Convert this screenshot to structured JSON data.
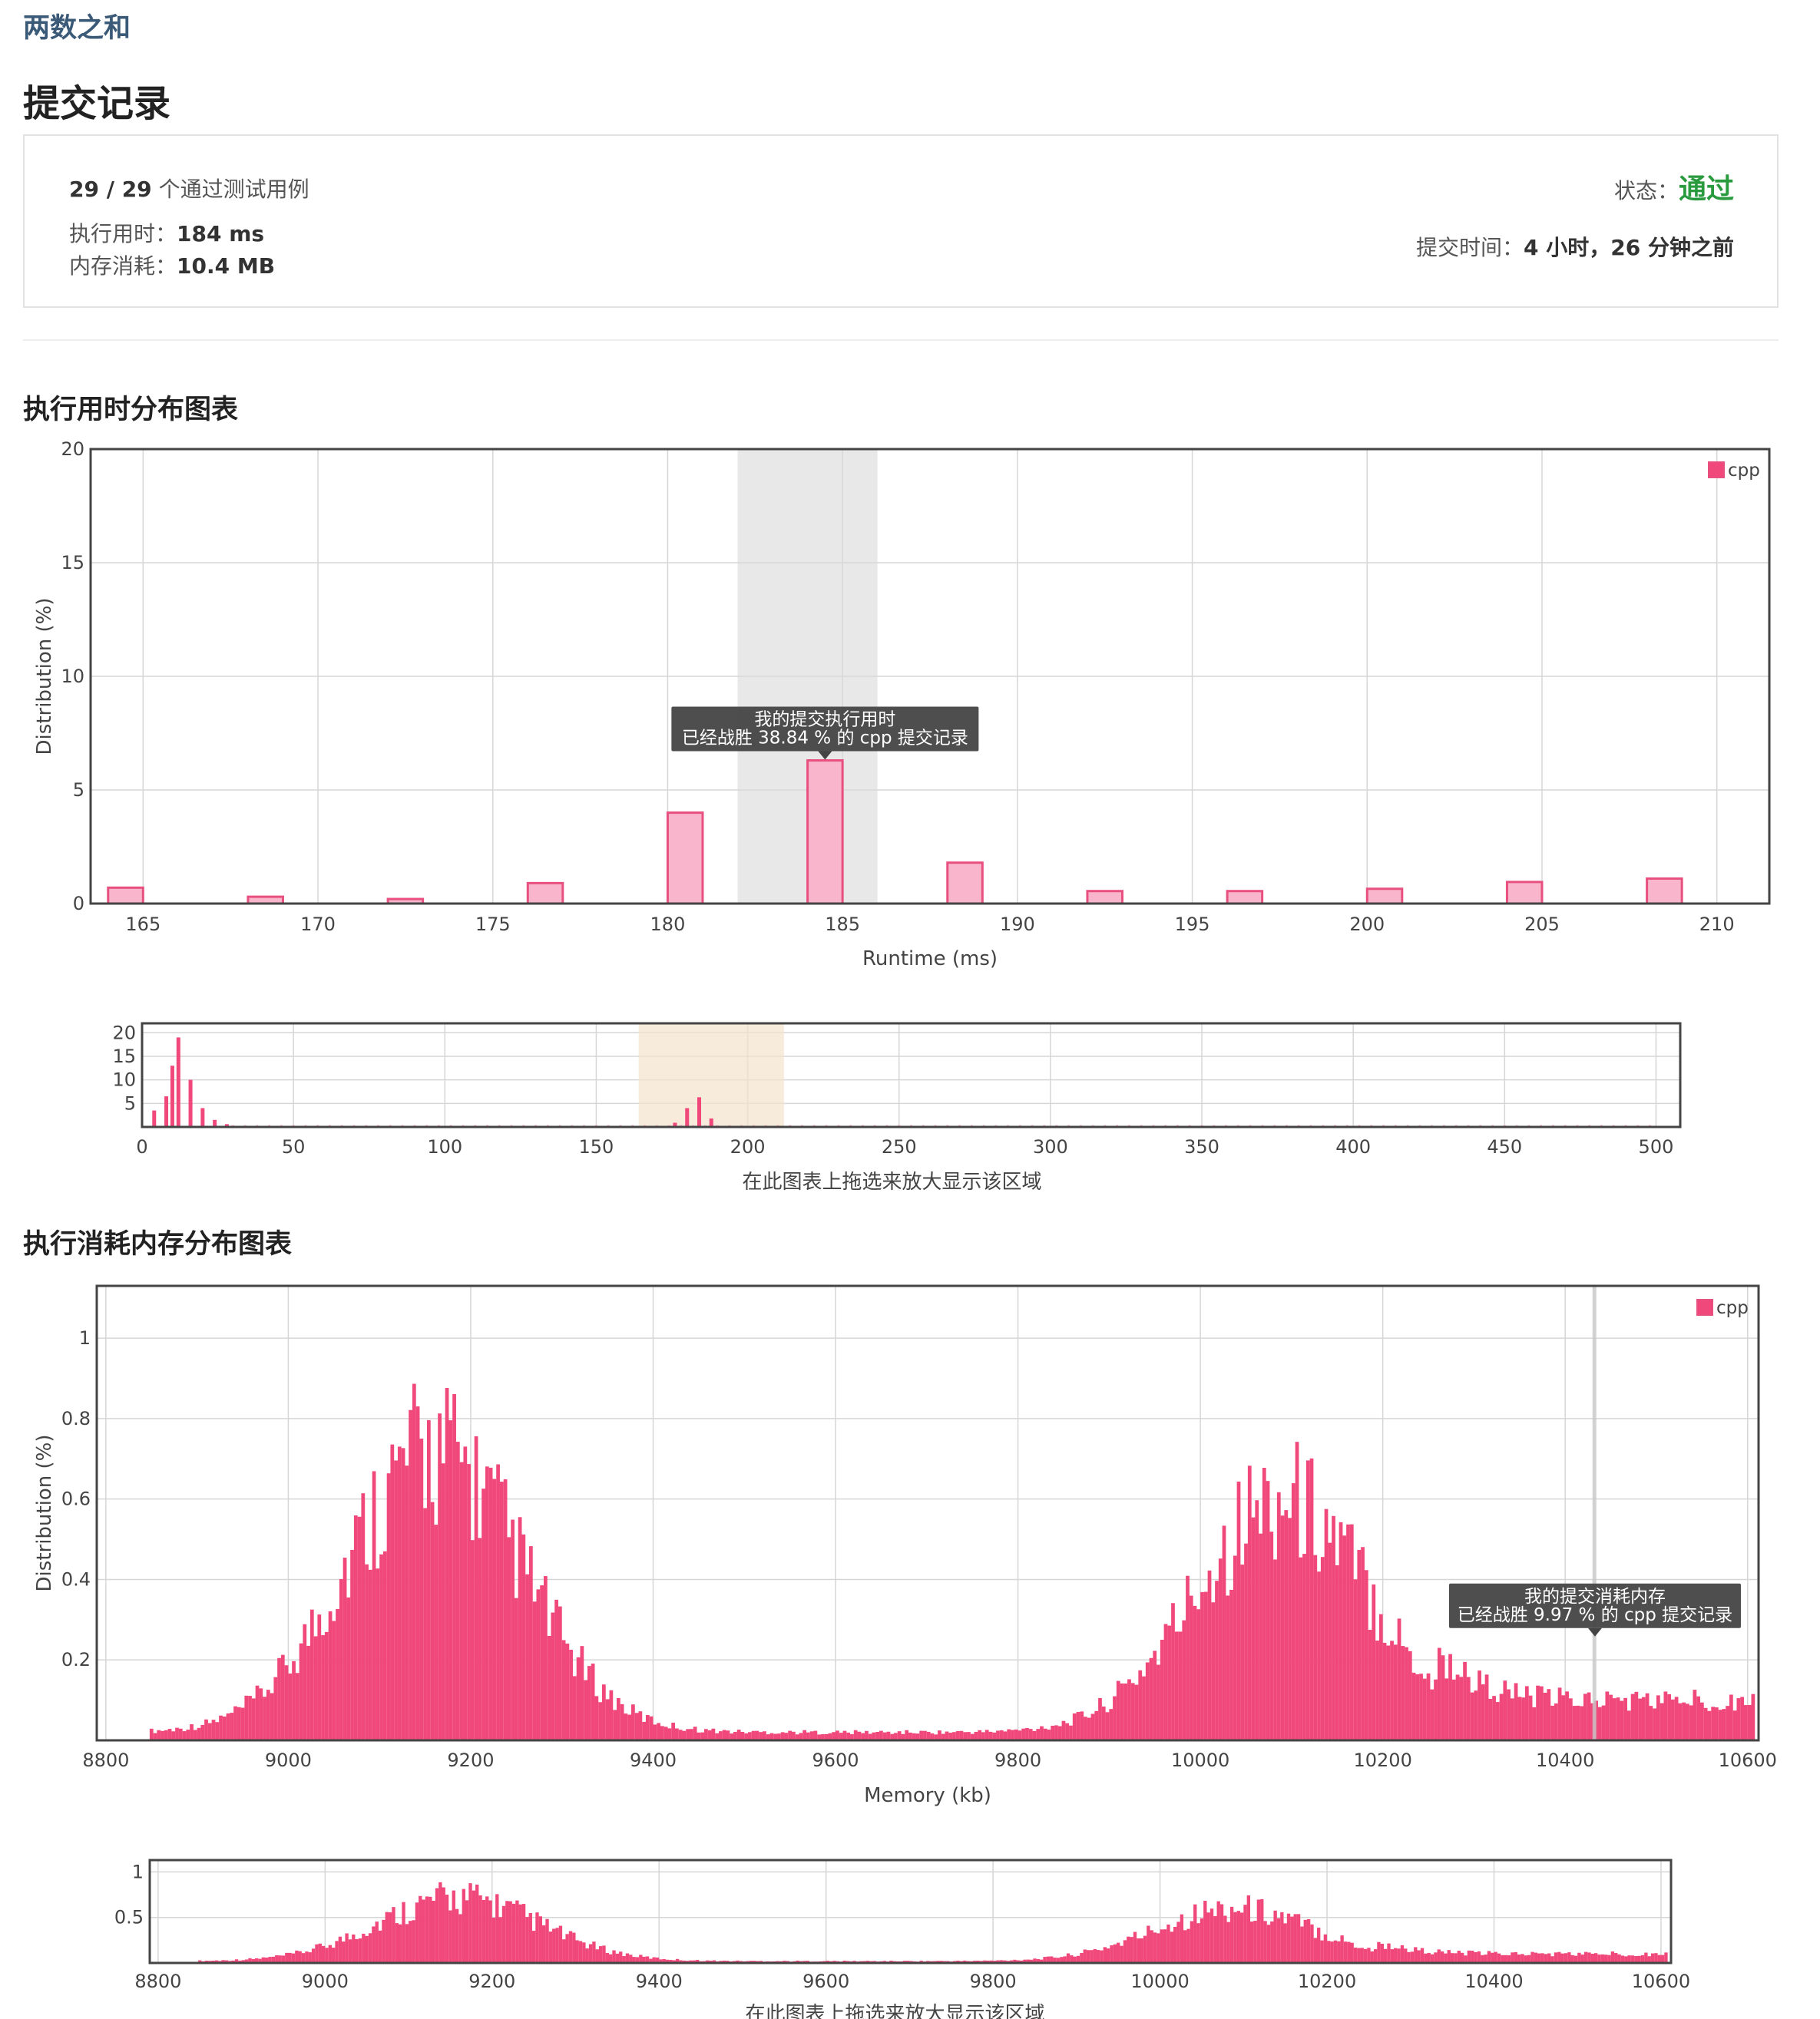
{
  "problem_title": "两数之和",
  "page_title": "提交记录",
  "summary": {
    "passed": "29 / 29",
    "passed_suffix": "个通过测试用例",
    "runtime_label": "执行用时：",
    "runtime_value": "184 ms",
    "memory_label": "内存消耗：",
    "memory_value": "10.4 MB",
    "status_label": "状态：",
    "status_value": "通过",
    "submit_time_label": "提交时间：",
    "submit_time_value": "4 小时，26 分钟之前"
  },
  "runtime_section_title": "执行用时分布图表",
  "memory_section_title": "执行消耗内存分布图表",
  "colors": {
    "bar_fill_light": "#f8b5cc",
    "bar_stroke": "#e8507f",
    "bar_fill_strong": "#f0487a",
    "pass": "#2a9a3e"
  },
  "chart_data": [
    {
      "type": "bar",
      "name": "runtime-main",
      "xlabel": "Runtime (ms)",
      "ylabel": "Distribution (%)",
      "xlim": [
        163.5,
        211.5
      ],
      "ylim": [
        0,
        20
      ],
      "xticks": [
        165,
        170,
        175,
        180,
        185,
        190,
        195,
        200,
        205,
        210
      ],
      "yticks": [
        0,
        5,
        10,
        15,
        20
      ],
      "legend": "cpp",
      "legend_position": "top-right",
      "grid": true,
      "highlight_range": [
        182,
        186
      ],
      "x": [
        164.5,
        168.5,
        172.5,
        176.5,
        180.5,
        184.5,
        188.5,
        192.5,
        196.5,
        200.5,
        204.5,
        208.5
      ],
      "values": [
        0.7,
        0.3,
        0.2,
        0.9,
        4.0,
        6.3,
        1.8,
        0.55,
        0.55,
        0.65,
        0.95,
        1.1
      ],
      "tooltip": {
        "x": 184.5,
        "line1": "我的提交执行用时",
        "line2": "已经战胜 38.84 % 的 cpp 提交记录"
      }
    },
    {
      "type": "bar",
      "name": "runtime-overview",
      "xlabel": "在此图表上拖选来放大显示该区域",
      "xlim": [
        0,
        508
      ],
      "ylim": [
        0,
        22
      ],
      "xticks": [
        0,
        50,
        100,
        150,
        200,
        250,
        300,
        350,
        400,
        450,
        500
      ],
      "yticks": [
        5,
        10,
        15,
        20
      ],
      "grid": true,
      "selection_range": [
        164,
        212
      ],
      "values": [
        {
          "x": 4,
          "y": 3.5
        },
        {
          "x": 8,
          "y": 6.5
        },
        {
          "x": 10,
          "y": 13
        },
        {
          "x": 12,
          "y": 19
        },
        {
          "x": 16,
          "y": 10
        },
        {
          "x": 20,
          "y": 4
        },
        {
          "x": 24,
          "y": 1.5
        },
        {
          "x": 28,
          "y": 0.6
        },
        {
          "x": 176,
          "y": 0.9
        },
        {
          "x": 180,
          "y": 4
        },
        {
          "x": 184,
          "y": 6.3
        },
        {
          "x": 188,
          "y": 1.8
        }
      ]
    },
    {
      "type": "bar",
      "name": "memory-main",
      "xlabel": "Memory (kb)",
      "ylabel": "Distribution (%)",
      "xlim": [
        8790,
        10612
      ],
      "ylim": [
        0,
        1.13
      ],
      "xticks": [
        8800,
        9000,
        9200,
        9400,
        9600,
        9800,
        10000,
        10200,
        10400,
        10600
      ],
      "yticks": [
        0.2,
        0.4,
        0.6,
        0.8,
        1.0
      ],
      "legend": "cpp",
      "legend_position": "top-right",
      "grid": true,
      "highlight_x": 10432,
      "bin_width": 4,
      "tooltip": {
        "x": 10436,
        "line1": "我的提交消耗内存",
        "line2": "已经战胜 9.97 % 的 cpp 提交记录"
      },
      "peaks": [
        {
          "mu": 9160,
          "sigma": 95,
          "amp": 0.7
        },
        {
          "mu": 10090,
          "sigma": 95,
          "amp": 0.58
        }
      ],
      "baseline": [
        {
          "from": 8850,
          "to": 10260,
          "level": 0.02
        },
        {
          "from": 10260,
          "to": 10612,
          "level": 0.1
        }
      ]
    },
    {
      "type": "bar",
      "name": "memory-overview",
      "xlabel": "在此图表上拖选来放大显示该区域",
      "xlim": [
        8790,
        10612
      ],
      "ylim": [
        0,
        1.13
      ],
      "xticks": [
        8800,
        9000,
        9200,
        9400,
        9600,
        9800,
        10000,
        10200,
        10400,
        10600
      ],
      "yticks": [
        0.5,
        1.0
      ],
      "grid": true
    }
  ]
}
